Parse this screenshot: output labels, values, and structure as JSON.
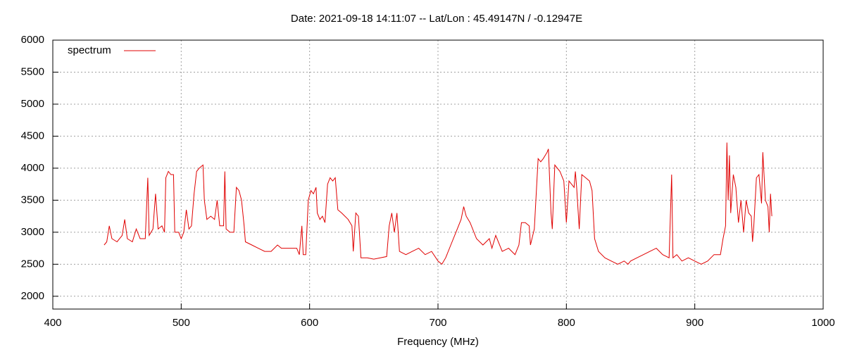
{
  "chart_data": {
    "type": "line",
    "title": "Date: 2021-09-18 14:11:07  --  Lat/Lon : 45.49147N / -0.12947E",
    "xlabel": "Frequency (MHz)",
    "xlim": [
      400,
      1000
    ],
    "xticks": [
      400,
      500,
      600,
      700,
      800,
      900,
      1000
    ],
    "ylim": [
      1800,
      6000
    ],
    "yticks": [
      2000,
      2500,
      3000,
      3500,
      4000,
      4500,
      5000,
      5500,
      6000
    ],
    "grid": true,
    "legend": "upper left",
    "x": [
      440,
      442,
      444,
      446,
      450,
      454,
      456,
      458,
      462,
      465,
      468,
      472,
      474,
      475,
      478,
      480,
      482,
      485,
      487,
      488,
      490,
      492,
      494,
      495,
      498,
      500,
      502,
      504,
      506,
      508,
      510,
      512,
      514,
      517,
      518,
      520,
      523,
      526,
      528,
      530,
      533,
      534,
      535,
      538,
      541,
      543,
      545,
      547,
      549,
      550,
      555,
      560,
      565,
      570,
      575,
      578,
      585,
      590,
      592,
      594,
      595,
      597,
      599,
      601,
      603,
      605,
      606,
      608,
      610,
      612,
      614,
      616,
      618,
      620,
      622,
      625,
      630,
      633,
      634,
      636,
      638,
      640,
      645,
      650,
      655,
      660,
      662,
      664,
      666,
      668,
      670,
      675,
      680,
      685,
      690,
      695,
      700,
      703,
      706,
      710,
      714,
      718,
      720,
      722,
      725,
      730,
      735,
      740,
      742,
      745,
      750,
      755,
      760,
      763,
      765,
      768,
      771,
      772,
      775,
      778,
      780,
      782,
      785,
      786,
      788,
      789,
      791,
      795,
      798,
      800,
      802,
      804,
      806,
      807,
      808,
      810,
      812,
      815,
      818,
      820,
      822,
      825,
      830,
      835,
      840,
      845,
      848,
      850,
      855,
      860,
      865,
      870,
      875,
      880,
      882,
      883,
      886,
      890,
      895,
      900,
      905,
      910,
      915,
      920,
      922,
      924,
      925,
      926,
      927,
      928,
      930,
      932,
      934,
      936,
      938,
      940,
      942,
      944,
      945,
      946,
      948,
      950,
      952,
      953,
      955,
      957,
      958,
      959,
      960
    ],
    "series": [
      {
        "name": "spectrum",
        "color": "#e00000",
        "values": [
          2800,
          2850,
          3100,
          2900,
          2850,
          2950,
          3200,
          2900,
          2850,
          3050,
          2900,
          2900,
          3850,
          2950,
          3050,
          3600,
          3050,
          3100,
          3000,
          3850,
          3950,
          3900,
          3900,
          3000,
          3000,
          2900,
          3000,
          3350,
          3050,
          3100,
          3600,
          3950,
          4000,
          4050,
          3500,
          3200,
          3250,
          3200,
          3500,
          3100,
          3100,
          3950,
          3050,
          3000,
          3000,
          3700,
          3650,
          3500,
          3100,
          2850,
          2800,
          2750,
          2700,
          2700,
          2800,
          2750,
          2750,
          2750,
          2650,
          3100,
          2650,
          2650,
          3500,
          3650,
          3600,
          3700,
          3300,
          3200,
          3250,
          3150,
          3750,
          3850,
          3800,
          3850,
          3350,
          3300,
          3200,
          3100,
          2700,
          3300,
          3250,
          2600,
          2600,
          2580,
          2600,
          2620,
          3100,
          3300,
          3000,
          3300,
          2700,
          2650,
          2700,
          2750,
          2650,
          2700,
          2550,
          2500,
          2600,
          2800,
          3000,
          3200,
          3400,
          3250,
          3150,
          2900,
          2800,
          2900,
          2750,
          2950,
          2700,
          2750,
          2650,
          2800,
          3150,
          3150,
          3100,
          2800,
          3050,
          4150,
          4100,
          4150,
          4250,
          4300,
          3300,
          3050,
          4050,
          3950,
          3800,
          3150,
          3800,
          3750,
          3700,
          3950,
          3700,
          3050,
          3900,
          3850,
          3800,
          3650,
          2900,
          2700,
          2600,
          2550,
          2500,
          2550,
          2500,
          2550,
          2600,
          2650,
          2700,
          2750,
          2650,
          2600,
          3900,
          2600,
          2650,
          2550,
          2600,
          2550,
          2500,
          2550,
          2650,
          2650,
          2900,
          3100,
          4400,
          3500,
          4200,
          3300,
          3900,
          3700,
          3150,
          3500,
          3000,
          3500,
          3300,
          3250,
          2850,
          3100,
          3850,
          3900,
          3450,
          4250,
          3500,
          3400,
          3000,
          3600,
          3250
        ]
      }
    ]
  }
}
